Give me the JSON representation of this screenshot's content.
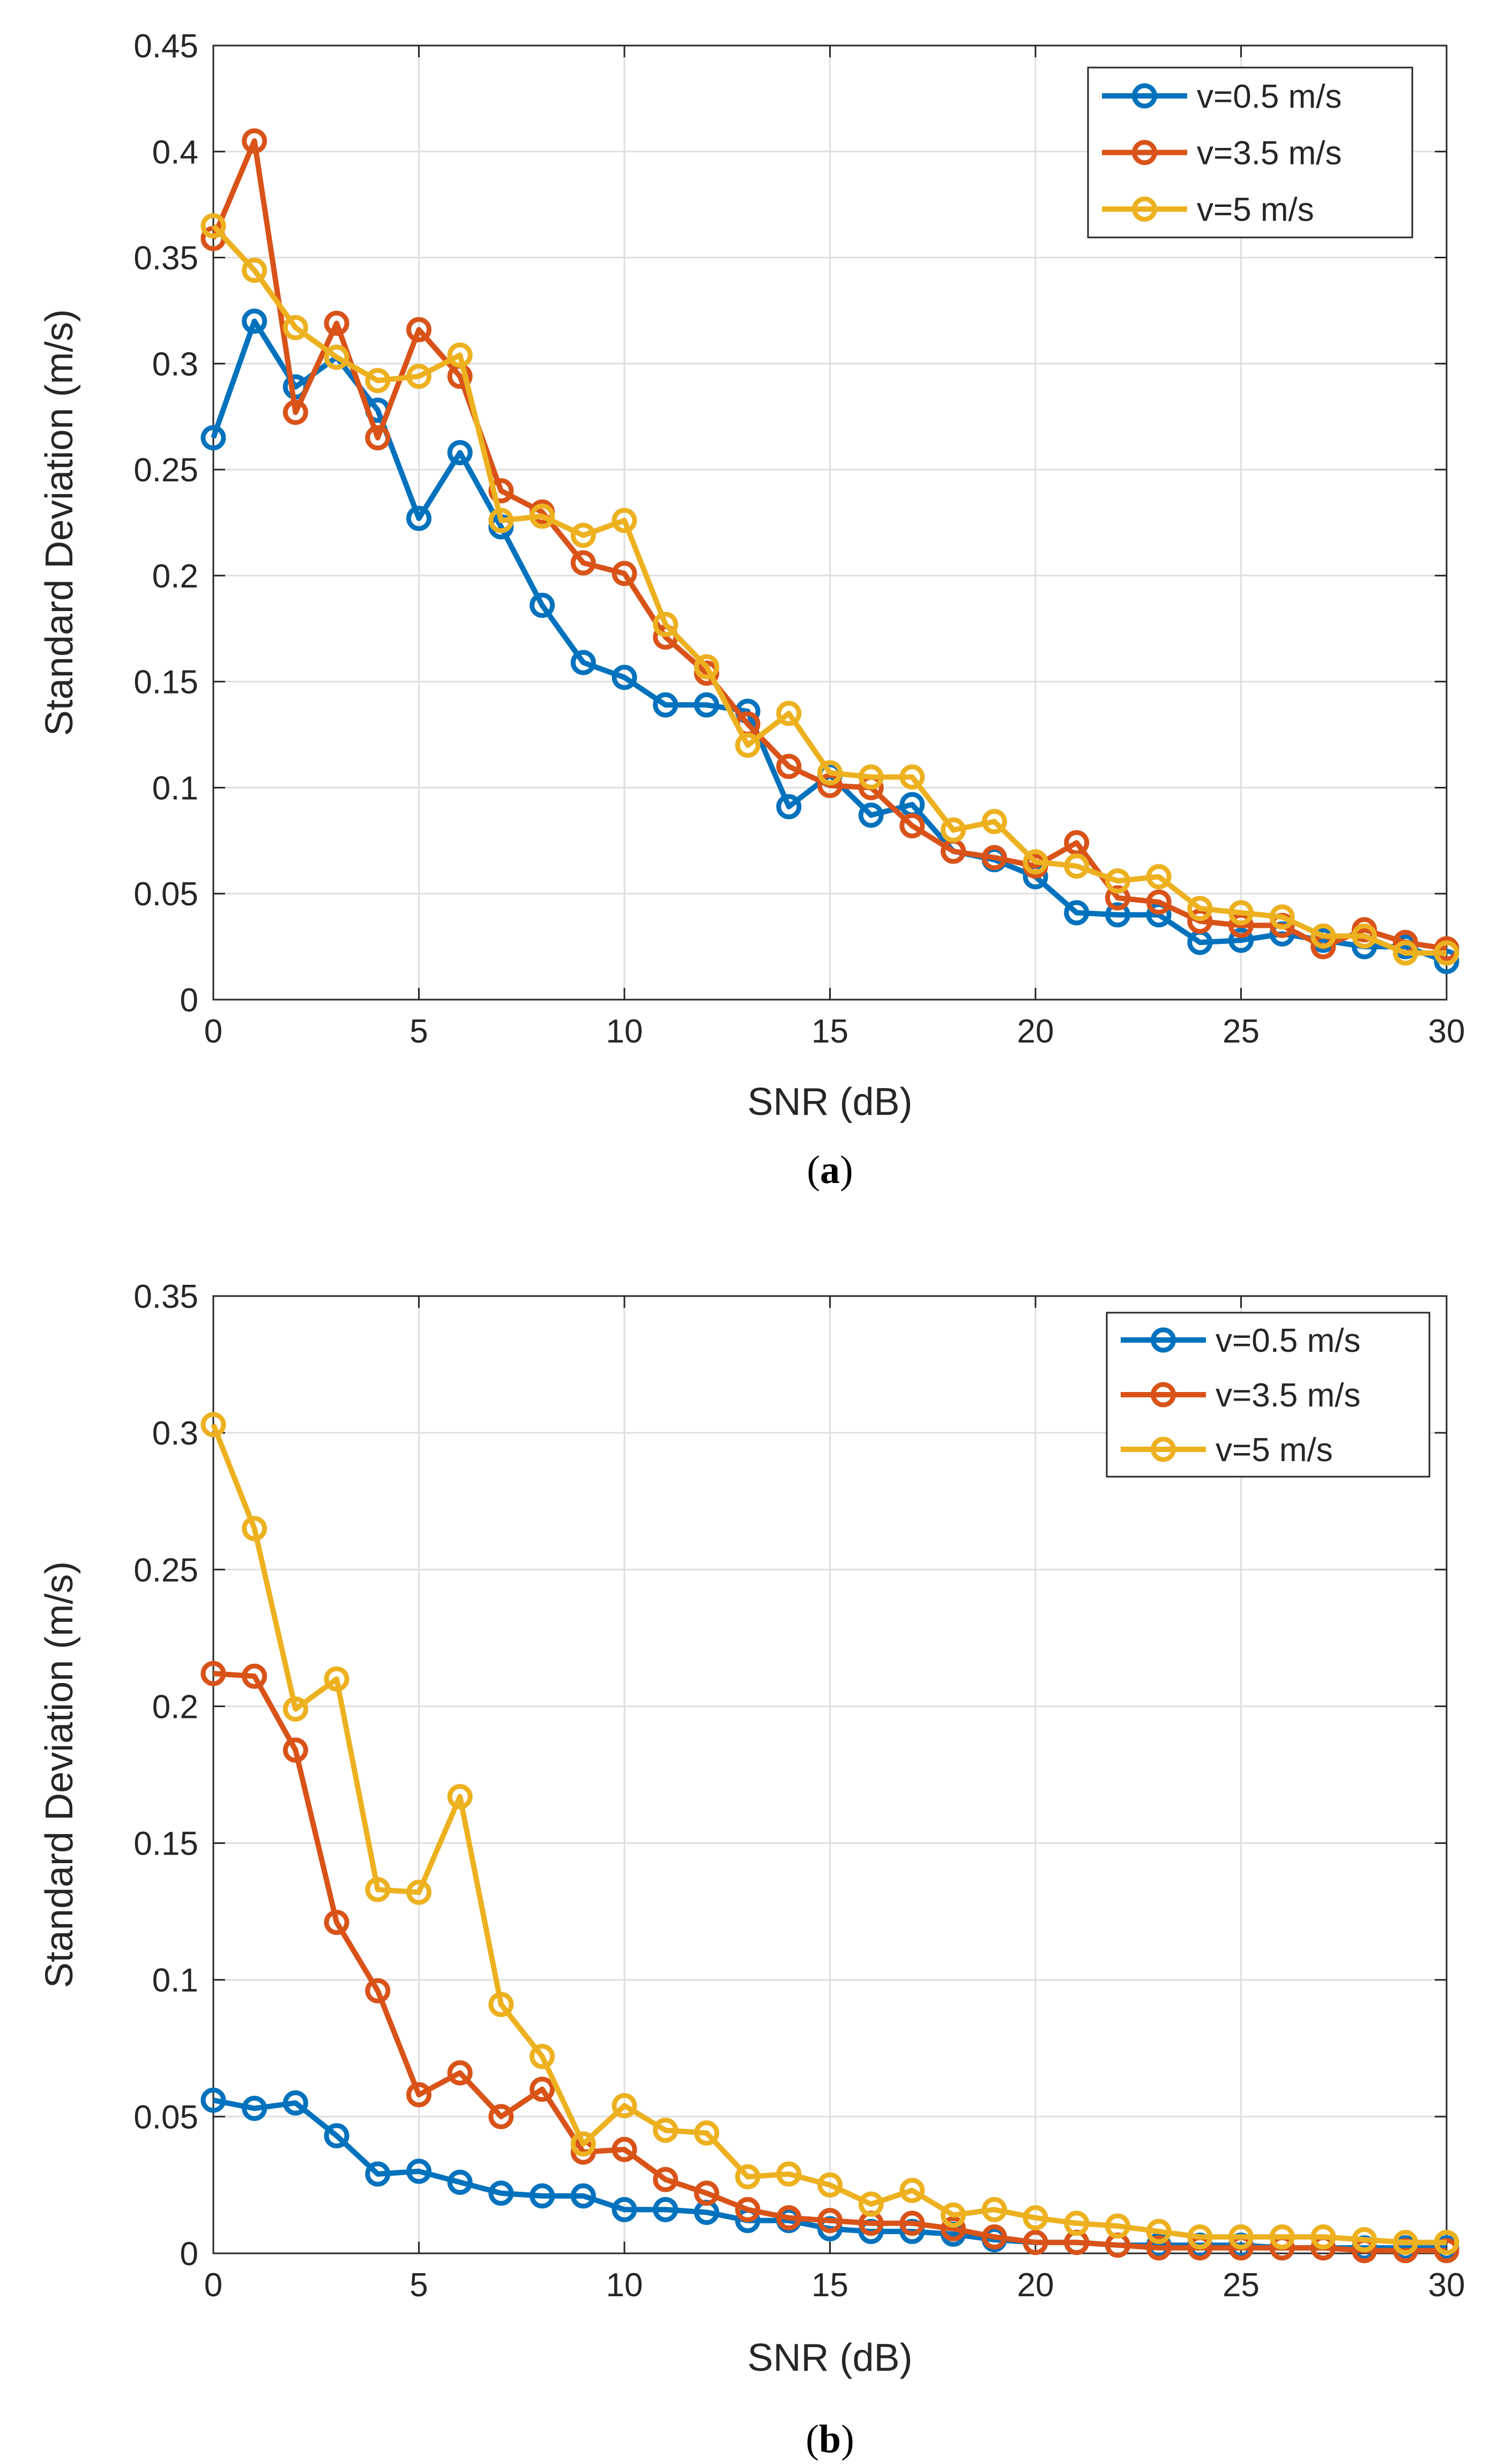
{
  "chart_data": [
    {
      "type": "line",
      "caption_letter": "a",
      "xlabel": "SNR (dB)",
      "ylabel": "Standard Deviation (m/s)",
      "xlim": [
        0,
        30
      ],
      "ylim": [
        0,
        0.45
      ],
      "xticks": [
        0,
        5,
        10,
        15,
        20,
        25,
        30
      ],
      "xtick_labels": [
        "0",
        "5",
        "10",
        "15",
        "20",
        "25",
        "30"
      ],
      "yticks": [
        0,
        0.05,
        0.1,
        0.15,
        0.2,
        0.25,
        0.3,
        0.35,
        0.4,
        0.45
      ],
      "ytick_labels": [
        "0",
        "0.05",
        "0.1",
        "0.15",
        "0.2",
        "0.25",
        "0.3",
        "0.35",
        "0.4",
        "0.45"
      ],
      "grid": true,
      "legend_position": "top-right",
      "x": [
        0,
        1,
        2,
        3,
        4,
        5,
        6,
        7,
        8,
        9,
        10,
        11,
        12,
        13,
        14,
        15,
        16,
        17,
        18,
        19,
        20,
        21,
        22,
        23,
        24,
        25,
        26,
        27,
        28,
        29,
        30
      ],
      "series": [
        {
          "name": "v=0.5 m/s",
          "color": "#0072BD",
          "values": [
            0.265,
            0.32,
            0.289,
            0.303,
            0.278,
            0.227,
            0.258,
            0.223,
            0.186,
            0.159,
            0.152,
            0.139,
            0.139,
            0.136,
            0.091,
            0.106,
            0.087,
            0.092,
            0.07,
            0.066,
            0.058,
            0.041,
            0.04,
            0.04,
            0.027,
            0.028,
            0.031,
            0.028,
            0.025,
            0.025,
            0.018
          ]
        },
        {
          "name": "v=3.5 m/s",
          "color": "#D95319",
          "values": [
            0.359,
            0.405,
            0.277,
            0.319,
            0.265,
            0.316,
            0.294,
            0.24,
            0.23,
            0.206,
            0.201,
            0.171,
            0.154,
            0.13,
            0.11,
            0.101,
            0.1,
            0.082,
            0.07,
            0.067,
            0.063,
            0.074,
            0.048,
            0.046,
            0.037,
            0.035,
            0.035,
            0.025,
            0.033,
            0.027,
            0.024
          ]
        },
        {
          "name": "v=5 m/s",
          "color": "#EDB120",
          "values": [
            0.365,
            0.344,
            0.317,
            0.303,
            0.292,
            0.294,
            0.304,
            0.226,
            0.228,
            0.219,
            0.226,
            0.177,
            0.157,
            0.12,
            0.135,
            0.107,
            0.105,
            0.105,
            0.08,
            0.084,
            0.065,
            0.063,
            0.056,
            0.058,
            0.043,
            0.041,
            0.039,
            0.03,
            0.03,
            0.022,
            0.022
          ]
        }
      ]
    },
    {
      "type": "line",
      "caption_letter": "b",
      "xlabel": "SNR (dB)",
      "ylabel": "Standard Deviation (m/s)",
      "xlim": [
        0,
        30
      ],
      "ylim": [
        0,
        0.35
      ],
      "xticks": [
        0,
        5,
        10,
        15,
        20,
        25,
        30
      ],
      "xtick_labels": [
        "0",
        "5",
        "10",
        "15",
        "20",
        "25",
        "30"
      ],
      "yticks": [
        0,
        0.05,
        0.1,
        0.15,
        0.2,
        0.25,
        0.3,
        0.35
      ],
      "ytick_labels": [
        "0",
        "0.05",
        "0.1",
        "0.15",
        "0.2",
        "0.25",
        "0.3",
        "0.35"
      ],
      "grid": true,
      "legend_position": "top-right",
      "x": [
        0,
        1,
        2,
        3,
        4,
        5,
        6,
        7,
        8,
        9,
        10,
        11,
        12,
        13,
        14,
        15,
        16,
        17,
        18,
        19,
        20,
        21,
        22,
        23,
        24,
        25,
        26,
        27,
        28,
        29,
        30
      ],
      "series": [
        {
          "name": "v=0.5 m/s",
          "color": "#0072BD",
          "values": [
            0.056,
            0.053,
            0.055,
            0.043,
            0.029,
            0.03,
            0.026,
            0.022,
            0.021,
            0.021,
            0.016,
            0.016,
            0.015,
            0.012,
            0.012,
            0.009,
            0.008,
            0.008,
            0.007,
            0.005,
            0.004,
            0.004,
            0.003,
            0.003,
            0.003,
            0.003,
            0.002,
            0.002,
            0.002,
            0.002,
            0.002
          ]
        },
        {
          "name": "v=3.5 m/s",
          "color": "#D95319",
          "values": [
            0.212,
            0.211,
            0.184,
            0.121,
            0.096,
            0.058,
            0.066,
            0.05,
            0.06,
            0.037,
            0.038,
            0.027,
            0.022,
            0.016,
            0.013,
            0.012,
            0.011,
            0.011,
            0.009,
            0.006,
            0.004,
            0.004,
            0.003,
            0.002,
            0.002,
            0.002,
            0.002,
            0.002,
            0.001,
            0.001,
            0.001
          ]
        },
        {
          "name": "v=5 m/s",
          "color": "#EDB120",
          "values": [
            0.303,
            0.265,
            0.199,
            0.21,
            0.133,
            0.132,
            0.167,
            0.091,
            0.072,
            0.04,
            0.054,
            0.045,
            0.044,
            0.028,
            0.029,
            0.025,
            0.018,
            0.023,
            0.014,
            0.016,
            0.013,
            0.011,
            0.01,
            0.008,
            0.006,
            0.006,
            0.006,
            0.006,
            0.005,
            0.004,
            0.004
          ]
        }
      ]
    }
  ]
}
